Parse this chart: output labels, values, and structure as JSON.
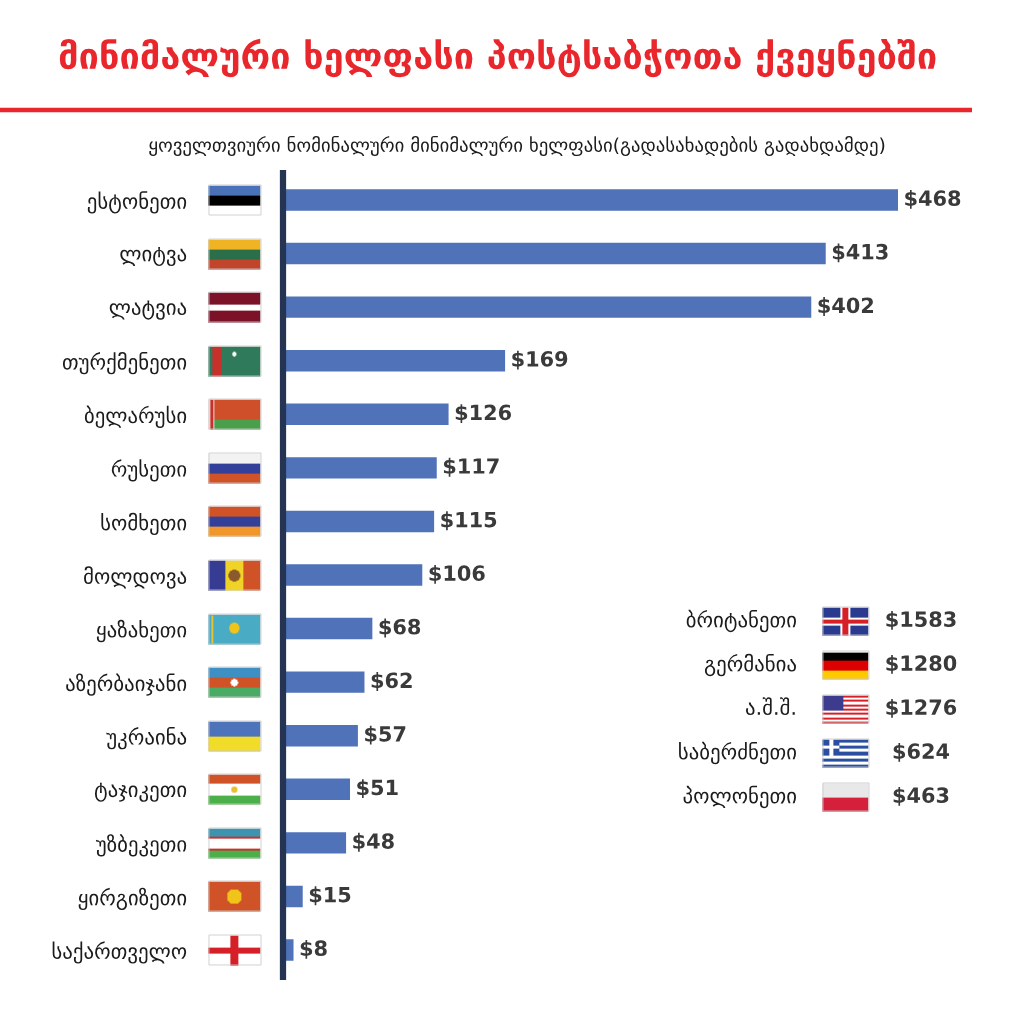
{
  "chart_data": [
    {
      "type": "bar",
      "orientation": "horizontal",
      "title": "მინიმალური ხელფასი პოსტსაბჭოთა ქვეყნებში",
      "subtitle": "ყოველთვიური ნომინალური მინიმალური ხელფასი(გადასახადების გადახდამდე)",
      "categories": [
        "ესტონეთი",
        "ლიტვა",
        "ლატვია",
        "თურქმენეთი",
        "ბელარუსი",
        "რუსეთი",
        "სომხეთი",
        "მოლდოვა",
        "ყაზახეთი",
        "აზერბაიჯანი",
        "უკრაინა",
        "ტაჯიკეთი",
        "უზბეკეთი",
        "ყირგიზეთი",
        "საქართველო"
      ],
      "values": [
        468,
        413,
        402,
        169,
        126,
        117,
        115,
        106,
        68,
        62,
        57,
        51,
        48,
        15,
        8
      ],
      "value_labels": [
        "$468",
        "$413",
        "$402",
        "$169",
        "$126",
        "$117",
        "$115",
        "$106",
        "$68",
        "$62",
        "$57",
        "$51",
        "$48",
        "$15",
        "$8"
      ],
      "color": "#4f72b8",
      "tick_labels": "y"
    },
    {
      "type": "other",
      "categories": [
        "ბრიტანეთი",
        "გერმანია",
        "ა.შ.შ.",
        "საბერძნეთი",
        "პოლონეთი"
      ],
      "value_labels": [
        "$1583",
        "$1280",
        "$1276",
        "$624",
        "$463"
      ]
    }
  ]
}
